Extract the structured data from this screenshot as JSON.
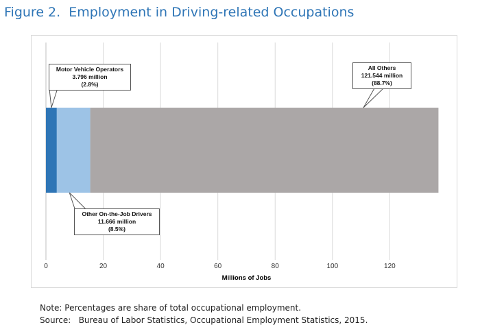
{
  "figure": {
    "title": "Figure 2.  Employment in Driving-related Occupations"
  },
  "notes": {
    "note": "Note: Percentages are share of total occupational employment.",
    "source": "Source:   Bureau of Labor Statistics, Occupational Employment Statistics, 2015."
  },
  "chart_data": {
    "type": "bar",
    "orientation": "horizontal",
    "stacked": true,
    "title": "Employment in Driving-related Occupations",
    "xlabel": "Millions of Jobs",
    "ylabel": "",
    "xlim": [
      0,
      140
    ],
    "xticks": [
      0,
      20,
      40,
      60,
      80,
      100,
      120
    ],
    "grid": true,
    "legend": "none",
    "series": [
      {
        "name": "Motor Vehicle Operators",
        "value": 3.796,
        "value_label": "3.796  million",
        "share_label": "(2.8%)",
        "color": "#2e75b6"
      },
      {
        "name": "Other On-the-Job Drivers",
        "value": 11.666,
        "value_label": "11.666  million",
        "share_label": "(8.5%)",
        "color": "#9dc3e6"
      },
      {
        "name": "All Others",
        "value": 121.544,
        "value_label": "121.544  million",
        "share_label": "(88.7%)",
        "color": "#aba7a7"
      }
    ]
  }
}
